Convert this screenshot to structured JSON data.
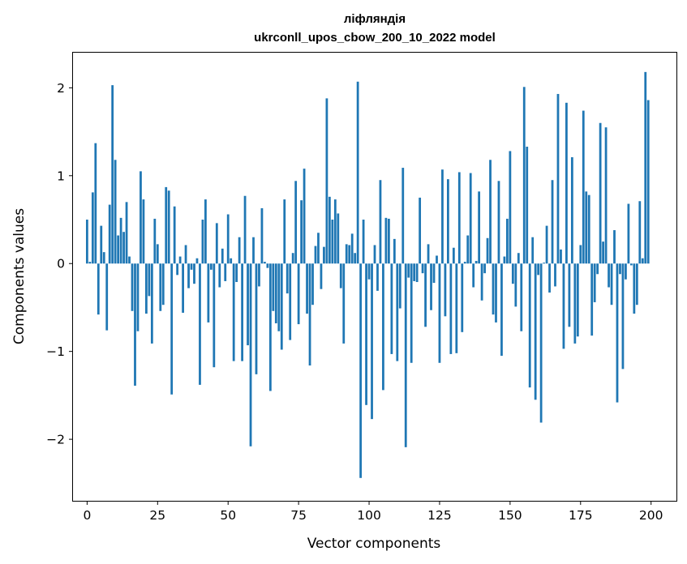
{
  "chart_data": {
    "type": "bar",
    "title": "ліфляндія",
    "subtitle": "ukrconll_upos_cbow_200_10_2022 model",
    "xlabel": "Vector components",
    "ylabel": "Components values",
    "xlim": [
      -5,
      209
    ],
    "ylim": [
      -2.7,
      2.4
    ],
    "xticks": [
      0,
      25,
      50,
      75,
      100,
      125,
      150,
      175,
      200
    ],
    "xtick_labels": [
      "0",
      "25",
      "50",
      "75",
      "100",
      "125",
      "150",
      "175",
      "200"
    ],
    "yticks": [
      -2,
      -1,
      0,
      1,
      2
    ],
    "ytick_labels": [
      "−2",
      "−1",
      "0",
      "1",
      "2"
    ],
    "grid": false,
    "bar_color": "#1f77b4",
    "x": [
      0,
      1,
      2,
      3,
      4,
      5,
      6,
      7,
      8,
      9,
      10,
      11,
      12,
      13,
      14,
      15,
      16,
      17,
      18,
      19,
      20,
      21,
      22,
      23,
      24,
      25,
      26,
      27,
      28,
      29,
      30,
      31,
      32,
      33,
      34,
      35,
      36,
      37,
      38,
      39,
      40,
      41,
      42,
      43,
      44,
      45,
      46,
      47,
      48,
      49,
      50,
      51,
      52,
      53,
      54,
      55,
      56,
      57,
      58,
      59,
      60,
      61,
      62,
      63,
      64,
      65,
      66,
      67,
      68,
      69,
      70,
      71,
      72,
      73,
      74,
      75,
      76,
      77,
      78,
      79,
      80,
      81,
      82,
      83,
      84,
      85,
      86,
      87,
      88,
      89,
      90,
      91,
      92,
      93,
      94,
      95,
      96,
      97,
      98,
      99,
      100,
      101,
      102,
      103,
      104,
      105,
      106,
      107,
      108,
      109,
      110,
      111,
      112,
      113,
      114,
      115,
      116,
      117,
      118,
      119,
      120,
      121,
      122,
      123,
      124,
      125,
      126,
      127,
      128,
      129,
      130,
      131,
      132,
      133,
      134,
      135,
      136,
      137,
      138,
      139,
      140,
      141,
      142,
      143,
      144,
      145,
      146,
      147,
      148,
      149,
      150,
      151,
      152,
      153,
      154,
      155,
      156,
      157,
      158,
      159,
      160,
      161,
      162,
      163,
      164,
      165,
      166,
      167,
      168,
      169,
      170,
      171,
      172,
      173,
      174,
      175,
      176,
      177,
      178,
      179,
      180,
      181,
      182,
      183,
      184,
      185,
      186,
      187,
      188,
      189,
      190,
      191,
      192,
      193,
      194,
      195,
      196,
      197,
      198,
      199
    ],
    "values": [
      0.5,
      0.02,
      0.81,
      1.37,
      -0.58,
      0.43,
      0.13,
      -0.76,
      0.67,
      2.03,
      1.18,
      0.32,
      0.52,
      0.36,
      0.7,
      0.08,
      -0.54,
      -1.39,
      -0.77,
      1.05,
      0.73,
      -0.57,
      -0.37,
      -0.91,
      0.51,
      0.22,
      -0.54,
      -0.47,
      0.87,
      0.83,
      -1.49,
      0.65,
      -0.13,
      0.08,
      -0.56,
      0.21,
      -0.28,
      -0.07,
      -0.23,
      0.06,
      -1.38,
      0.5,
      0.73,
      -0.67,
      -0.07,
      -1.18,
      0.46,
      -0.27,
      0.17,
      -0.2,
      0.56,
      0.06,
      -1.11,
      -0.21,
      0.3,
      -1.11,
      0.77,
      -0.93,
      -2.08,
      0.3,
      -1.26,
      -0.26,
      0.63,
      0.02,
      -0.05,
      -1.45,
      -0.54,
      -0.68,
      -0.77,
      -0.98,
      0.73,
      -0.34,
      -0.87,
      0.12,
      0.94,
      -0.69,
      0.72,
      1.08,
      -0.57,
      -1.16,
      -0.47,
      0.2,
      0.35,
      -0.29,
      0.19,
      1.88,
      0.76,
      0.5,
      0.73,
      0.57,
      -0.28,
      -0.91,
      0.22,
      0.21,
      0.34,
      0.12,
      2.07,
      -2.44,
      0.5,
      -1.61,
      -0.18,
      -1.77,
      0.21,
      -0.31,
      0.95,
      -1.44,
      0.52,
      0.51,
      -1.03,
      0.28,
      -1.11,
      -0.51,
      1.09,
      -2.09,
      -0.16,
      -1.13,
      -0.2,
      -0.21,
      0.75,
      -0.11,
      -0.72,
      0.22,
      -0.53,
      -0.22,
      0.09,
      -1.13,
      1.07,
      -0.6,
      0.96,
      -1.03,
      0.18,
      -1.02,
      1.04,
      -0.78,
      0.02,
      0.32,
      1.03,
      -0.27,
      0.03,
      0.82,
      -0.42,
      -0.11,
      0.29,
      1.18,
      -0.58,
      -0.67,
      0.94,
      -1.05,
      0.08,
      0.51,
      1.28,
      -0.23,
      -0.49,
      0.12,
      -0.77,
      2.01,
      1.33,
      -1.41,
      0.3,
      -1.55,
      -0.13,
      -1.81,
      0.01,
      0.43,
      -0.33,
      0.95,
      -0.26,
      1.93,
      0.16,
      -0.97,
      1.83,
      -0.72,
      1.21,
      -0.91,
      -0.83,
      0.21,
      1.74,
      0.82,
      0.78,
      -0.82,
      -0.44,
      -0.12,
      1.6,
      0.25,
      1.55,
      -0.27,
      -0.47,
      0.38,
      -1.58,
      -0.12,
      -1.2,
      -0.18,
      0.68,
      -0.02,
      -0.57,
      -0.47,
      0.71,
      0.06,
      2.18,
      1.86
    ]
  }
}
